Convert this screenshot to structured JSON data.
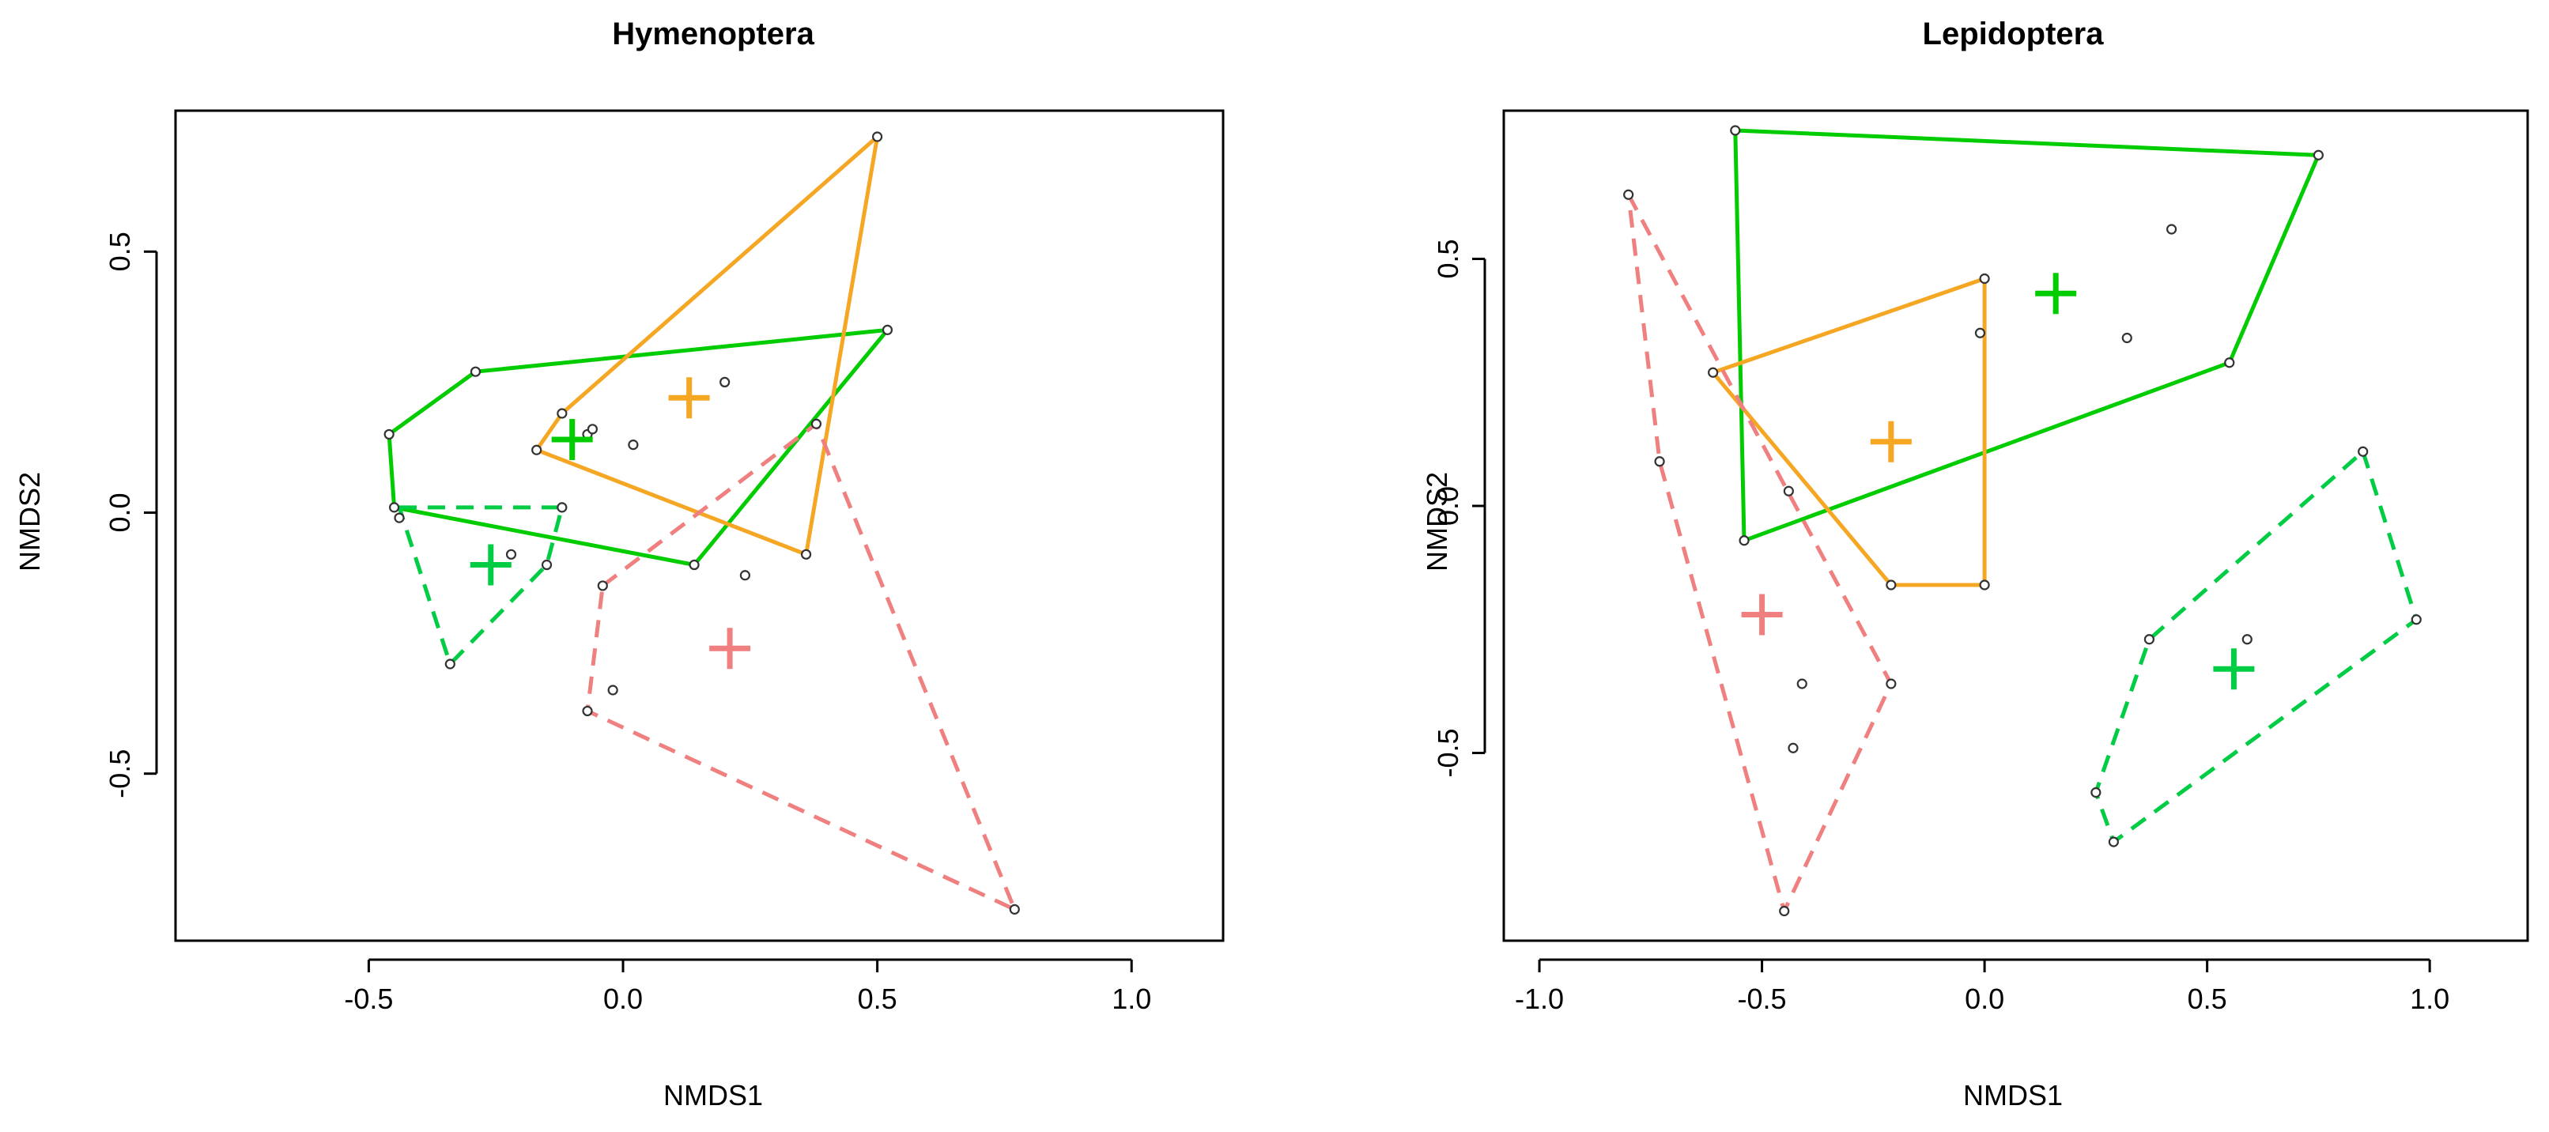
{
  "chart_data": [
    {
      "type": "scatter",
      "title": "Hymenoptera",
      "xlabel": "NMDS1",
      "ylabel": "NMDS2",
      "xlim": [
        -0.88,
        1.18
      ],
      "ylim": [
        -0.82,
        0.77
      ],
      "xticks": [
        -0.5,
        0.0,
        0.5,
        1.0
      ],
      "xtick_labels": [
        "-0.5",
        "0.0",
        "0.5",
        "1.0"
      ],
      "yticks": [
        -0.5,
        0.0,
        0.5
      ],
      "ytick_labels": [
        "-0.5",
        "0.0",
        "0.5"
      ],
      "grid": false,
      "points": [
        {
          "x": -0.46,
          "y": 0.15
        },
        {
          "x": -0.29,
          "y": 0.27
        },
        {
          "x": 0.52,
          "y": 0.35
        },
        {
          "x": 0.14,
          "y": -0.1
        },
        {
          "x": -0.45,
          "y": 0.01
        },
        {
          "x": -0.44,
          "y": -0.01
        },
        {
          "x": -0.12,
          "y": 0.19
        },
        {
          "x": -0.07,
          "y": 0.15
        },
        {
          "x": -0.06,
          "y": 0.16
        },
        {
          "x": 0.02,
          "y": 0.13
        },
        {
          "x": -0.17,
          "y": 0.12
        },
        {
          "x": 0.5,
          "y": 0.72
        },
        {
          "x": 0.36,
          "y": -0.08
        },
        {
          "x": 0.2,
          "y": 0.25
        },
        {
          "x": 0.38,
          "y": 0.17
        },
        {
          "x": 0.24,
          "y": -0.12
        },
        {
          "x": -0.12,
          "y": 0.01
        },
        {
          "x": -0.22,
          "y": -0.08
        },
        {
          "x": -0.15,
          "y": -0.1
        },
        {
          "x": -0.34,
          "y": -0.29
        },
        {
          "x": -0.04,
          "y": -0.14
        },
        {
          "x": -0.02,
          "y": -0.34
        },
        {
          "x": -0.07,
          "y": -0.38
        },
        {
          "x": 0.77,
          "y": -0.76
        }
      ],
      "hulls": [
        {
          "color": "#00cc00",
          "dashed": false,
          "vertices": [
            [
              -0.46,
              0.15
            ],
            [
              -0.29,
              0.27
            ],
            [
              0.52,
              0.35
            ],
            [
              0.14,
              -0.1
            ],
            [
              -0.45,
              0.01
            ]
          ]
        },
        {
          "color": "#f5a623",
          "dashed": false,
          "vertices": [
            [
              -0.17,
              0.12
            ],
            [
              -0.12,
              0.19
            ],
            [
              0.5,
              0.72
            ],
            [
              0.36,
              -0.08
            ]
          ]
        },
        {
          "color": "#00cc44",
          "dashed": true,
          "vertices": [
            [
              -0.44,
              0.01
            ],
            [
              -0.12,
              0.01
            ],
            [
              -0.15,
              -0.1
            ],
            [
              -0.34,
              -0.29
            ]
          ]
        },
        {
          "color": "#f08080",
          "dashed": true,
          "vertices": [
            [
              -0.04,
              -0.14
            ],
            [
              0.38,
              0.17
            ],
            [
              0.77,
              -0.76
            ],
            [
              -0.07,
              -0.38
            ]
          ]
        }
      ],
      "centroids": [
        {
          "x": 0.13,
          "y": 0.22,
          "color": "#f5a623"
        },
        {
          "x": -0.1,
          "y": 0.14,
          "color": "#00cc00"
        },
        {
          "x": -0.26,
          "y": -0.1,
          "color": "#00cc44"
        },
        {
          "x": 0.21,
          "y": -0.26,
          "color": "#f08080"
        }
      ]
    },
    {
      "type": "scatter",
      "title": "Lepidoptera",
      "xlabel": "NMDS1",
      "ylabel": "NMDS2",
      "xlim": [
        -1.08,
        1.22
      ],
      "ylim": [
        -0.88,
        0.8
      ],
      "xticks": [
        -1.0,
        -0.5,
        0.0,
        0.5,
        1.0
      ],
      "xtick_labels": [
        "-1.0",
        "-0.5",
        "0.0",
        "0.5",
        "1.0"
      ],
      "yticks": [
        -0.5,
        0.0,
        0.5
      ],
      "ytick_labels": [
        "-0.5",
        "0.0",
        "0.5"
      ],
      "grid": false,
      "points": [
        {
          "x": -0.56,
          "y": 0.76
        },
        {
          "x": 0.75,
          "y": 0.71
        },
        {
          "x": 0.55,
          "y": 0.29
        },
        {
          "x": -0.54,
          "y": -0.07
        },
        {
          "x": 0.42,
          "y": 0.56
        },
        {
          "x": 0.32,
          "y": 0.34
        },
        {
          "x": -0.01,
          "y": 0.35
        },
        {
          "x": 0.0,
          "y": 0.46
        },
        {
          "x": -0.61,
          "y": 0.27
        },
        {
          "x": -0.44,
          "y": 0.03
        },
        {
          "x": -0.21,
          "y": -0.16
        },
        {
          "x": 0.0,
          "y": -0.16
        },
        {
          "x": -0.8,
          "y": 0.63
        },
        {
          "x": -0.73,
          "y": 0.09
        },
        {
          "x": -0.41,
          "y": -0.36
        },
        {
          "x": -0.43,
          "y": -0.49
        },
        {
          "x": -0.45,
          "y": -0.82
        },
        {
          "x": -0.21,
          "y": -0.36
        },
        {
          "x": 0.85,
          "y": 0.11
        },
        {
          "x": 0.97,
          "y": -0.23
        },
        {
          "x": 0.37,
          "y": -0.27
        },
        {
          "x": 0.59,
          "y": -0.27
        },
        {
          "x": 0.25,
          "y": -0.58
        },
        {
          "x": 0.29,
          "y": -0.68
        }
      ],
      "hulls": [
        {
          "color": "#00cc00",
          "dashed": false,
          "vertices": [
            [
              -0.56,
              0.76
            ],
            [
              0.75,
              0.71
            ],
            [
              0.55,
              0.29
            ],
            [
              -0.54,
              -0.07
            ]
          ]
        },
        {
          "color": "#f5a623",
          "dashed": false,
          "vertices": [
            [
              -0.61,
              0.27
            ],
            [
              0.0,
              0.46
            ],
            [
              0.0,
              -0.16
            ],
            [
              -0.21,
              -0.16
            ]
          ]
        },
        {
          "color": "#f08080",
          "dashed": true,
          "vertices": [
            [
              -0.8,
              0.63
            ],
            [
              -0.21,
              -0.36
            ],
            [
              -0.45,
              -0.82
            ],
            [
              -0.73,
              0.09
            ]
          ]
        },
        {
          "color": "#00cc44",
          "dashed": true,
          "vertices": [
            [
              0.85,
              0.11
            ],
            [
              0.97,
              -0.23
            ],
            [
              0.29,
              -0.68
            ],
            [
              0.25,
              -0.58
            ],
            [
              0.37,
              -0.27
            ]
          ]
        }
      ],
      "centroids": [
        {
          "x": 0.16,
          "y": 0.43,
          "color": "#00cc00"
        },
        {
          "x": -0.21,
          "y": 0.13,
          "color": "#f5a623"
        },
        {
          "x": -0.5,
          "y": -0.22,
          "color": "#f08080"
        },
        {
          "x": 0.56,
          "y": -0.33,
          "color": "#00cc44"
        }
      ]
    }
  ]
}
